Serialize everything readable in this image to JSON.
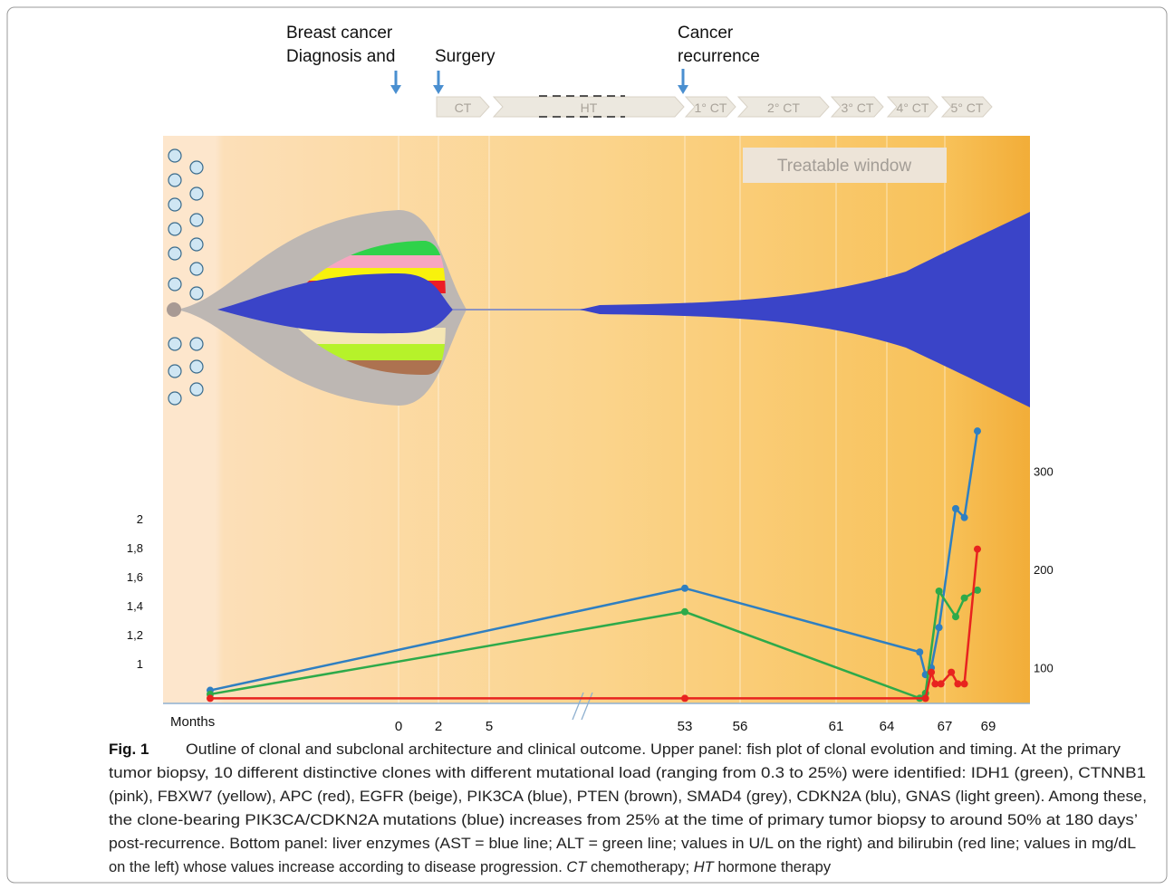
{
  "annotations": {
    "diagnosis": [
      "Breast cancer",
      "Diagnosis and"
    ],
    "surgery": "Surgery",
    "recurrence": [
      "Cancer",
      "recurrence"
    ]
  },
  "therapies": [
    "CT",
    "HT",
    "1° CT",
    "2° CT",
    "3° CT",
    "4° CT",
    "5° CT"
  ],
  "treatable_window": "Treatable window",
  "chart_data": {
    "type": "line",
    "xlabel": "Months",
    "xlim": [
      -10,
      71
    ],
    "xticks": [
      0,
      2,
      5,
      53,
      56,
      61,
      64,
      67,
      69
    ],
    "ylim": [
      0.7,
      2.7
    ],
    "yticks": [
      1,
      {
        "value": 1.2,
        "label": "1,2"
      },
      {
        "value": 1.4,
        "label": "1,4"
      },
      {
        "value": 1.6,
        "label": "1,6"
      },
      {
        "value": 1.8,
        "label": "1,8"
      },
      2
    ],
    "y2lim": [
      60,
      355
    ],
    "y2ticks": [
      100,
      200,
      300
    ],
    "grid": true,
    "series": [
      {
        "color": "#2f7fc1",
        "axis": "y2",
        "x": [
          -8,
          53,
          65.7,
          66.0,
          66.3,
          66.7,
          67.5,
          67.9,
          68.5
        ],
        "values": [
          77,
          181,
          116,
          93,
          100,
          141,
          262,
          253,
          341
        ]
      },
      {
        "color": "#2eaa4a",
        "axis": "y2",
        "x": [
          -8,
          53,
          65.7,
          66.0,
          66.7,
          67.5,
          67.9,
          68.5
        ],
        "values": [
          73,
          157,
          69,
          74,
          178,
          152,
          171,
          179
        ]
      },
      {
        "color": "#e8231f",
        "axis": "y",
        "x": [
          -8,
          53,
          66.0,
          66.3,
          66.5,
          66.8,
          67.3,
          67.6,
          67.9,
          68.5
        ],
        "values": [
          0.76,
          0.76,
          0.76,
          0.94,
          0.86,
          0.86,
          0.94,
          0.86,
          0.86,
          1.79
        ]
      }
    ]
  },
  "caption": {
    "label": "Fig. 1",
    "lines": [
      "Outline of clonal and subclonal architecture and clinical outcome. Upper panel: fish plot of clonal evolution and timing. At the primary",
      "tumor biopsy, 10 different distinctive clones with different mutational load (ranging from 0.3 to 25%) were identified: IDH1 (green), CTNNB1",
      "(pink), FBXW7 (yellow), APC (red), EGFR (beige), PIK3CA (blue), PTEN (brown), SMAD4 (grey), CDKN2A (blu), GNAS (light green). Among these,",
      "the clone-bearing PIK3CA/CDKN2A mutations (blue) increases from 25% at the time of primary tumor biopsy to around 50% at 180 days’",
      "post-recurrence. Bottom panel: liver enzymes (AST = blue line; ALT = green line; values in U/L on the right) and bilirubin (red line; values in mg/dL"
    ],
    "last_line": [
      "on the left) whose values increase according to disease progression.",
      "CT",
      "chemotherapy;",
      "HT",
      "hormone therapy"
    ]
  }
}
